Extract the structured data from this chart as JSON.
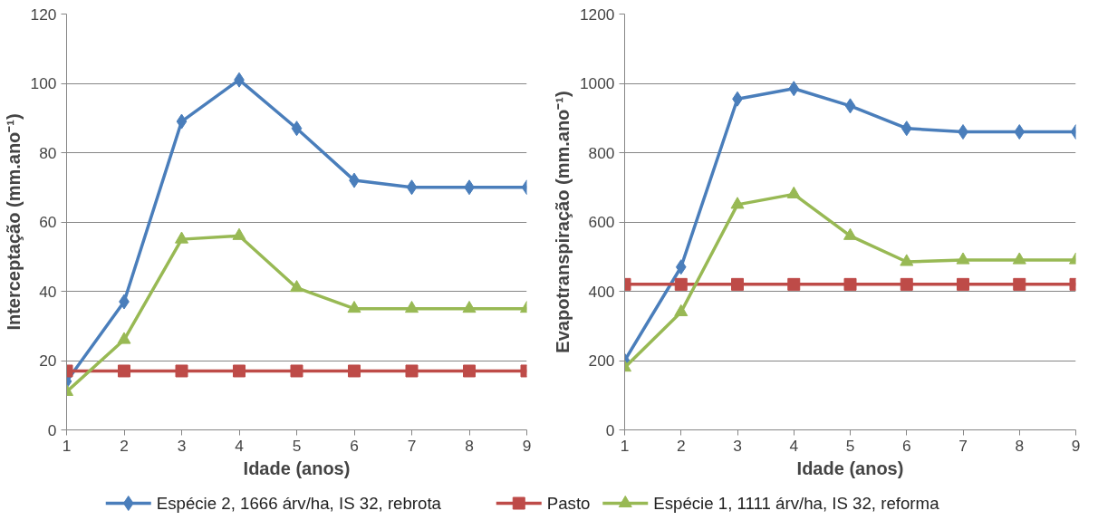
{
  "chart_data": [
    {
      "type": "line",
      "ylabel": "Interceptação (mm.ano⁻¹)",
      "xlabel": "Idade (anos)",
      "x": [
        1,
        2,
        3,
        4,
        5,
        6,
        7,
        8,
        9
      ],
      "xlim": [
        1,
        9
      ],
      "xticks": [
        1,
        2,
        3,
        4,
        5,
        6,
        7,
        8,
        9
      ],
      "ylim": [
        0,
        120
      ],
      "yticks": [
        0,
        20,
        40,
        60,
        80,
        100,
        120
      ],
      "grid": "y",
      "legend": "bottom",
      "series": [
        {
          "name": "Espécie 2, 1666 árv/ha, IS 32, rebrota",
          "color": "#4a7ebb",
          "marker": "diamond",
          "values": [
            14,
            37,
            89,
            101,
            87,
            72,
            70,
            70,
            70
          ]
        },
        {
          "name": "Pasto",
          "color": "#be4b48",
          "marker": "square",
          "values": [
            17,
            17,
            17,
            17,
            17,
            17,
            17,
            17,
            17
          ]
        },
        {
          "name": "Espécie 1, 1111 árv/ha, IS 32, reforma",
          "color": "#98b954",
          "marker": "triangle",
          "values": [
            11,
            26,
            55,
            56,
            41,
            35,
            35,
            35,
            35
          ]
        }
      ]
    },
    {
      "type": "line",
      "ylabel": "Evapotranspiração (mm.ano⁻¹)",
      "xlabel": "Idade (anos)",
      "x": [
        1,
        2,
        3,
        4,
        5,
        6,
        7,
        8,
        9
      ],
      "xlim": [
        1,
        9
      ],
      "xticks": [
        1,
        2,
        3,
        4,
        5,
        6,
        7,
        8,
        9
      ],
      "ylim": [
        0,
        1200
      ],
      "yticks": [
        0,
        200,
        400,
        600,
        800,
        1000,
        1200
      ],
      "grid": "y",
      "series": [
        {
          "color": "#4a7ebb",
          "marker": "diamond",
          "values": [
            200,
            470,
            955,
            985,
            935,
            870,
            860,
            860,
            860
          ]
        },
        {
          "color": "#be4b48",
          "marker": "square",
          "values": [
            420,
            420,
            420,
            420,
            420,
            420,
            420,
            420,
            420
          ]
        },
        {
          "color": "#98b954",
          "marker": "triangle",
          "values": [
            180,
            340,
            650,
            680,
            560,
            485,
            490,
            490,
            490
          ]
        }
      ]
    }
  ]
}
